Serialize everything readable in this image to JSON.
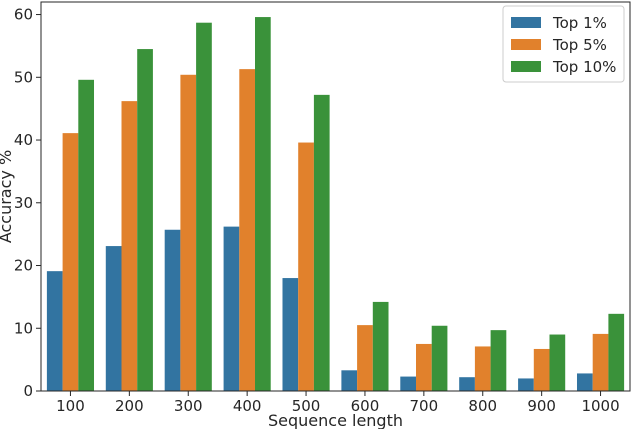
{
  "chart_data": {
    "type": "bar",
    "xlabel": "Sequence length",
    "ylabel": "Accuracy %",
    "ylim": [
      0,
      62
    ],
    "yticks": [
      0,
      10,
      20,
      30,
      40,
      50,
      60
    ],
    "categories": [
      "100",
      "200",
      "300",
      "400",
      "500",
      "600",
      "700",
      "800",
      "900",
      "1000"
    ],
    "series": [
      {
        "name": "Top 1%",
        "color": "#3274a1",
        "values": [
          19.1,
          23.1,
          25.7,
          26.2,
          18.0,
          3.3,
          2.3,
          2.2,
          2.0,
          2.8
        ]
      },
      {
        "name": "Top 5%",
        "color": "#e1812c",
        "values": [
          41.1,
          46.2,
          50.4,
          51.3,
          39.6,
          10.5,
          7.5,
          7.1,
          6.7,
          9.1
        ]
      },
      {
        "name": "Top 10%",
        "color": "#3a923a",
        "values": [
          49.6,
          54.5,
          58.7,
          59.6,
          47.2,
          14.2,
          10.4,
          9.7,
          9.0,
          12.3
        ]
      }
    ],
    "legend_position": "top-right",
    "grid": false
  }
}
